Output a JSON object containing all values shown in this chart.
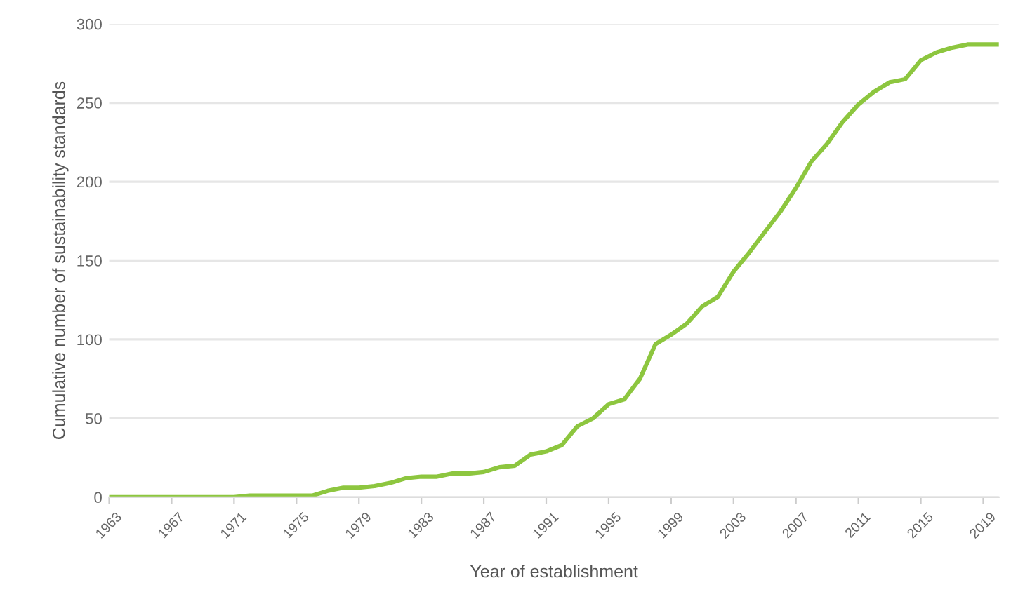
{
  "chart_data": {
    "type": "line",
    "xlabel": "Year of establishment",
    "ylabel": "Cumulative number of sustainability standards",
    "x": [
      1963,
      1964,
      1965,
      1966,
      1967,
      1968,
      1969,
      1970,
      1971,
      1972,
      1973,
      1974,
      1975,
      1976,
      1977,
      1978,
      1979,
      1980,
      1981,
      1982,
      1983,
      1984,
      1985,
      1986,
      1987,
      1988,
      1989,
      1990,
      1991,
      1992,
      1993,
      1994,
      1995,
      1996,
      1997,
      1998,
      1999,
      2000,
      2001,
      2002,
      2003,
      2004,
      2005,
      2006,
      2007,
      2008,
      2009,
      2010,
      2011,
      2012,
      2013,
      2014,
      2015,
      2016,
      2017,
      2018,
      2019,
      2020
    ],
    "series": [
      {
        "color": "#8dc63f",
        "values": [
          0,
          0,
          0,
          0,
          0,
          0,
          0,
          0,
          0,
          1,
          1,
          1,
          1,
          1,
          4,
          6,
          6,
          7,
          9,
          12,
          13,
          13,
          15,
          15,
          16,
          19,
          20,
          27,
          29,
          33,
          45,
          50,
          59,
          62,
          75,
          97,
          103,
          110,
          121,
          127,
          143,
          155,
          168,
          181,
          196,
          213,
          224,
          238,
          249,
          257,
          263,
          265,
          277,
          282,
          285,
          287,
          287,
          287
        ]
      }
    ],
    "xlim": [
      1963,
      2020
    ],
    "ylim": [
      0,
      300
    ],
    "xticks": [
      1963,
      1967,
      1971,
      1975,
      1979,
      1983,
      1987,
      1991,
      1995,
      1999,
      2003,
      2007,
      2011,
      2015,
      2019
    ],
    "yticks": [
      0,
      50,
      100,
      150,
      200,
      250,
      300
    ],
    "grid": "y",
    "line_style": "solid",
    "marker": "none"
  }
}
